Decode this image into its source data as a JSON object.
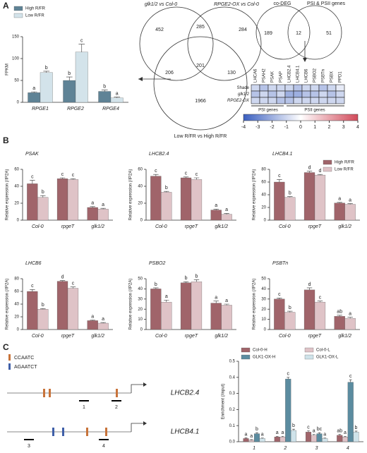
{
  "panels": [
    "A",
    "B",
    "C"
  ],
  "venn3": {
    "sets": [
      "glk1/2 vs Col-0",
      "RPGE2-OX vs Col-0",
      "Low R/FR vs High R/FR"
    ],
    "counts": [
      "452",
      "285",
      "284",
      "206",
      "201",
      "130",
      "1966"
    ]
  },
  "venn2": {
    "sets": [
      "co-DEG",
      "PSI & PSII genes"
    ],
    "counts": [
      "189",
      "12",
      "51"
    ]
  },
  "heatmap": {
    "genes": [
      "LHCA6",
      "PSAH2",
      "PSAK",
      "PSAP",
      "LHCB2.4",
      "LHCB4.1",
      "LHCB6",
      "PSBO2",
      "PSBTn",
      "PSBX",
      "PPD1"
    ],
    "rows": [
      "Shade",
      "glk1/2",
      "RPGE2-OX"
    ],
    "values": [
      [
        -1,
        -1.5,
        -1,
        -1,
        -1,
        -1.5,
        -1,
        -1,
        -1.5,
        -1,
        -0.5
      ],
      [
        -1.5,
        -1,
        -1.5,
        -1,
        -2,
        -2,
        -1.5,
        -1.5,
        -1,
        -1.5,
        -1
      ],
      [
        -1,
        -1,
        -1,
        -1.5,
        -1.5,
        -1,
        -1,
        -1,
        -1,
        -1,
        -1
      ]
    ],
    "groups": [
      "PSI genes",
      "PSII genes"
    ],
    "scale_ticks": [
      -4,
      -3,
      -2,
      -1,
      0,
      1,
      2,
      3,
      4
    ]
  },
  "gene_diagram": {
    "motifs": [
      {
        "name": "CCAATC",
        "color": "#c8733a"
      },
      {
        "name": "AGAATCT",
        "color": "#3f5fa8"
      }
    ],
    "genes": [
      {
        "name": "LHCB2.4",
        "regions": [
          "1",
          "2"
        ]
      },
      {
        "name": "LHCB4.1",
        "regions": [
          "3",
          "4"
        ]
      }
    ]
  },
  "chart_data": [
    {
      "type": "bar",
      "ylabel": "FPKM",
      "categories": [
        "RPGE1",
        "RPGE2",
        "RPGE4"
      ],
      "ylim": [
        0,
        150
      ],
      "yticks": [
        0,
        50,
        100,
        150
      ],
      "legend": "top-left",
      "series": [
        {
          "name": "High R/FR",
          "color": "#5f8396",
          "values": [
            22,
            50,
            25
          ],
          "errors": [
            2,
            8,
            3
          ],
          "labels": [
            "a",
            "b",
            "b"
          ]
        },
        {
          "name": "Low R/FR",
          "color": "#d3e3ea",
          "values": [
            68,
            115,
            10
          ],
          "errors": [
            3,
            18,
            2
          ],
          "labels": [
            "b",
            "c",
            "a"
          ]
        }
      ]
    },
    {
      "type": "bar",
      "title": "PSAK",
      "ylabel": "Relative expression (/IP2A)",
      "categories": [
        "Col-0",
        "rpgeT",
        "glk1/2"
      ],
      "ylim": [
        0,
        60
      ],
      "yticks": [
        0,
        20,
        40,
        60
      ],
      "series": [
        {
          "name": "High R/FR",
          "color": "#a0646a",
          "values": [
            43,
            49,
            15
          ],
          "errors": [
            4,
            1,
            1
          ],
          "labels": [
            "c",
            "c",
            "a"
          ]
        },
        {
          "name": "Low R/FR",
          "color": "#dfc3c7",
          "values": [
            27,
            48,
            13
          ],
          "errors": [
            2,
            1,
            1
          ],
          "labels": [
            "b",
            "c",
            "a"
          ]
        }
      ]
    },
    {
      "type": "bar",
      "title": "LHCB2.4",
      "ylabel": "Relative expression (/IP2A)",
      "categories": [
        "Col-0",
        "rpgeT",
        "glk1/2"
      ],
      "ylim": [
        0,
        60
      ],
      "yticks": [
        0,
        20,
        40,
        60
      ],
      "series": [
        {
          "name": "High R/FR",
          "color": "#a0646a",
          "values": [
            52,
            50,
            12
          ],
          "errors": [
            2,
            1,
            1
          ],
          "labels": [
            "c",
            "c",
            "a"
          ]
        },
        {
          "name": "Low R/FR",
          "color": "#dfc3c7",
          "values": [
            33,
            48,
            7
          ],
          "errors": [
            1,
            2,
            1
          ],
          "labels": [
            "b",
            "c",
            "a"
          ]
        }
      ]
    },
    {
      "type": "bar",
      "title": "LHCB4.1",
      "ylabel": "Relative expression (/IP2A)",
      "categories": [
        "Col-0",
        "rpgeT",
        "glk1/2"
      ],
      "ylim": [
        0,
        80
      ],
      "yticks": [
        0,
        20,
        40,
        60,
        80
      ],
      "legend": "top-right",
      "series": [
        {
          "name": "High R/FR",
          "color": "#a0646a",
          "values": [
            60,
            75,
            27
          ],
          "errors": [
            4,
            2,
            1
          ],
          "labels": [
            "c",
            "d",
            "a"
          ]
        },
        {
          "name": "Low R/FR",
          "color": "#dfc3c7",
          "values": [
            36,
            71,
            25
          ],
          "errors": [
            1,
            1,
            1
          ],
          "labels": [
            "b",
            "d",
            "a"
          ]
        }
      ]
    },
    {
      "type": "bar",
      "title": "LHCB6",
      "ylabel": "Relative expression (/IP2A)",
      "categories": [
        "Col-0",
        "rpgeT",
        "glk1/2"
      ],
      "ylim": [
        0,
        80
      ],
      "yticks": [
        0,
        20,
        40,
        60,
        80
      ],
      "series": [
        {
          "name": "High R/FR",
          "color": "#a0646a",
          "values": [
            60,
            76,
            14
          ],
          "errors": [
            3,
            1,
            1
          ],
          "labels": [
            "c",
            "d",
            "a"
          ]
        },
        {
          "name": "Low R/FR",
          "color": "#dfc3c7",
          "values": [
            32,
            65,
            10
          ],
          "errors": [
            1,
            2,
            1
          ],
          "labels": [
            "b",
            "c",
            "a"
          ]
        }
      ]
    },
    {
      "type": "bar",
      "title": "PSBO2",
      "ylabel": "Relative expression (/IP2A)",
      "categories": [
        "Col-0",
        "rpgeT",
        "glk1/2"
      ],
      "ylim": [
        0,
        50
      ],
      "yticks": [
        0,
        10,
        20,
        30,
        40,
        50
      ],
      "series": [
        {
          "name": "High R/FR",
          "color": "#a0646a",
          "values": [
            40,
            46,
            26
          ],
          "errors": [
            1,
            1,
            2
          ],
          "labels": [
            "b",
            "b",
            "a"
          ]
        },
        {
          "name": "Low R/FR",
          "color": "#dfc3c7",
          "values": [
            27,
            47,
            24
          ],
          "errors": [
            2,
            2,
            1
          ],
          "labels": [
            "a",
            "b",
            "a"
          ]
        }
      ]
    },
    {
      "type": "bar",
      "title": "PSBTn",
      "ylabel": "Relative expression (/IP2A)",
      "categories": [
        "Col-0",
        "rpgeT",
        "glk1/2"
      ],
      "ylim": [
        0,
        50
      ],
      "yticks": [
        0,
        10,
        20,
        30,
        40,
        50
      ],
      "series": [
        {
          "name": "High R/FR",
          "color": "#a0646a",
          "values": [
            30,
            39,
            13
          ],
          "errors": [
            1,
            2,
            1
          ],
          "labels": [
            "c",
            "d",
            "ab"
          ]
        },
        {
          "name": "Low R/FR",
          "color": "#dfc3c7",
          "values": [
            17,
            27,
            11
          ],
          "errors": [
            1,
            1,
            1
          ],
          "labels": [
            "b",
            "c",
            "a"
          ]
        }
      ]
    },
    {
      "type": "bar",
      "ylabel": "Enrichment (/input)",
      "categories": [
        "1",
        "2",
        "3",
        "4"
      ],
      "ylim": [
        0,
        0.5
      ],
      "yticks": [
        {
          "value": 0,
          "label": "0.0"
        },
        0.1,
        0.2,
        0.3,
        0.4,
        0.5
      ],
      "legend": "top",
      "series": [
        {
          "name": "Col-0-H",
          "color": "#a0646a",
          "values": [
            0.02,
            0.03,
            0.06,
            0.04
          ],
          "errors": [
            0.004,
            0.004,
            0.008,
            0.006
          ],
          "labels": [
            "a",
            "a",
            "c",
            "ab"
          ]
        },
        {
          "name": "Col-0-L",
          "color": "#dfc3c7",
          "values": [
            0.01,
            0.03,
            0.04,
            0.03
          ],
          "errors": [
            0.003,
            0.004,
            0.005,
            0.004
          ],
          "labels": [
            "a",
            "a",
            "a",
            "a"
          ]
        },
        {
          "name": "GLK1-OX-H",
          "color": "#5b8ca0",
          "values": [
            0.05,
            0.39,
            0.05,
            0.37
          ],
          "errors": [
            0.006,
            0.01,
            0.006,
            0.015
          ],
          "labels": [
            "b",
            "c",
            "bc",
            "c"
          ]
        },
        {
          "name": "GLK1-OX-L",
          "color": "#cfe3ea",
          "values": [
            0.02,
            0.07,
            0.02,
            0.06
          ],
          "errors": [
            0.003,
            0.008,
            0.003,
            0.006
          ],
          "labels": [
            "a",
            "b",
            "a",
            "b"
          ]
        }
      ]
    }
  ]
}
